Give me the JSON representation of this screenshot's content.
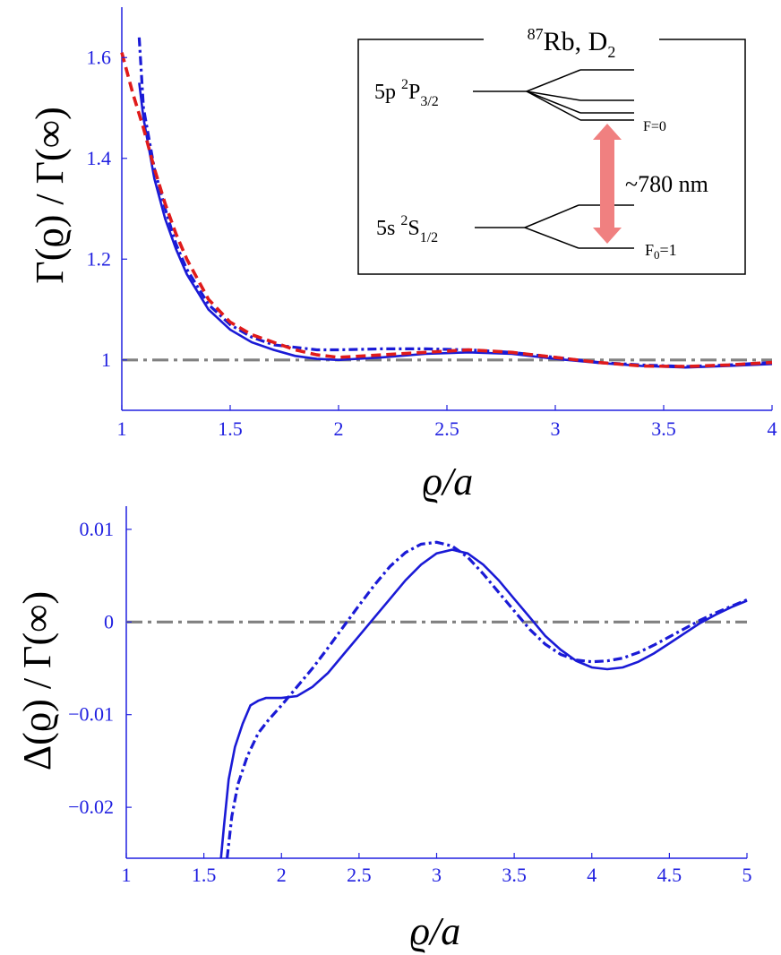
{
  "colors": {
    "axis": "#2020e0",
    "blue": "#1a1ad6",
    "red": "#e01b1b",
    "reference": "#808080",
    "arrow": "#f08080"
  },
  "chart_data": [
    {
      "type": "line",
      "name": "top-panel",
      "ylabel": "Γ(ϱ) / Γ(∞)",
      "xlabel": "ϱ/a",
      "xlim": [
        1,
        4
      ],
      "ylim": [
        0.9,
        1.7
      ],
      "xticks": [
        "1",
        "1.5",
        "2",
        "2.5",
        "3",
        "3.5",
        "4"
      ],
      "yticks": [
        "1",
        "1.2",
        "1.4",
        "1.6"
      ],
      "series": [
        {
          "name": "blue-solid",
          "style": "solid",
          "color": "blue",
          "x": [
            1.08,
            1.1,
            1.15,
            1.2,
            1.25,
            1.3,
            1.4,
            1.5,
            1.6,
            1.7,
            1.8,
            1.9,
            2.0,
            2.2,
            2.4,
            2.6,
            2.8,
            3.0,
            3.2,
            3.4,
            3.6,
            3.8,
            4.0
          ],
          "y": [
            1.55,
            1.48,
            1.36,
            1.28,
            1.22,
            1.17,
            1.1,
            1.06,
            1.035,
            1.02,
            1.008,
            1.002,
            1.0,
            1.005,
            1.012,
            1.015,
            1.012,
            1.002,
            0.994,
            0.988,
            0.985,
            0.988,
            0.992
          ]
        },
        {
          "name": "blue-dashdot",
          "style": "dashdot",
          "color": "blue",
          "x": [
            1.08,
            1.1,
            1.15,
            1.2,
            1.25,
            1.3,
            1.4,
            1.5,
            1.6,
            1.7,
            1.8,
            1.9,
            2.0,
            2.2,
            2.4,
            2.6,
            2.8,
            3.0,
            3.2,
            3.4,
            3.6,
            3.8,
            4.0
          ],
          "y": [
            1.64,
            1.5,
            1.38,
            1.3,
            1.23,
            1.18,
            1.11,
            1.07,
            1.045,
            1.03,
            1.025,
            1.02,
            1.02,
            1.022,
            1.022,
            1.02,
            1.015,
            1.005,
            0.995,
            0.99,
            0.987,
            0.99,
            0.995
          ]
        },
        {
          "name": "red-dashed",
          "style": "dashed",
          "color": "red",
          "x": [
            1.0,
            1.05,
            1.1,
            1.15,
            1.2,
            1.25,
            1.3,
            1.4,
            1.5,
            1.6,
            1.7,
            1.8,
            1.9,
            2.0,
            2.2,
            2.4,
            2.6,
            2.8,
            3.0,
            3.2,
            3.4,
            3.6,
            3.8,
            4.0
          ],
          "y": [
            1.61,
            1.53,
            1.46,
            1.38,
            1.31,
            1.25,
            1.2,
            1.12,
            1.075,
            1.05,
            1.035,
            1.02,
            1.01,
            1.005,
            1.01,
            1.015,
            1.02,
            1.015,
            1.005,
            0.995,
            0.988,
            0.987,
            0.99,
            0.995
          ]
        },
        {
          "name": "reference",
          "style": "reference",
          "color": "reference",
          "x": [
            1.0,
            4.0
          ],
          "y": [
            1.0,
            1.0
          ]
        }
      ]
    },
    {
      "type": "line",
      "name": "bottom-panel",
      "ylabel": "Δ(ϱ) / Γ(∞)",
      "xlabel": "ϱ/a",
      "xlim": [
        1,
        5
      ],
      "ylim": [
        -0.0255,
        0.0125
      ],
      "xticks": [
        "1",
        "1.5",
        "2",
        "2.5",
        "3",
        "3.5",
        "4",
        "4.5",
        "5"
      ],
      "yticks": [
        "-0.02",
        "-0.01",
        "0",
        "0.01"
      ],
      "series": [
        {
          "name": "blue-solid",
          "style": "solid",
          "color": "blue",
          "x": [
            1.61,
            1.63,
            1.66,
            1.7,
            1.75,
            1.8,
            1.85,
            1.9,
            2.0,
            2.1,
            2.2,
            2.3,
            2.4,
            2.5,
            2.6,
            2.7,
            2.8,
            2.9,
            3.0,
            3.1,
            3.2,
            3.3,
            3.4,
            3.5,
            3.6,
            3.7,
            3.8,
            3.9,
            4.0,
            4.1,
            4.2,
            4.3,
            4.4,
            4.5,
            4.6,
            4.7,
            4.8,
            4.9,
            5.0
          ],
          "y": [
            -0.0255,
            -0.022,
            -0.017,
            -0.0135,
            -0.011,
            -0.009,
            -0.0085,
            -0.0082,
            -0.0082,
            -0.008,
            -0.007,
            -0.0055,
            -0.0035,
            -0.0015,
            0.0005,
            0.0025,
            0.0045,
            0.0062,
            0.0074,
            0.0078,
            0.0074,
            0.0062,
            0.0045,
            0.0025,
            0.0005,
            -0.0015,
            -0.003,
            -0.0042,
            -0.0049,
            -0.0051,
            -0.0049,
            -0.0043,
            -0.0034,
            -0.0023,
            -0.0012,
            -0.0001,
            0.0008,
            0.0016,
            0.0023
          ]
        },
        {
          "name": "blue-dashdot",
          "style": "dashdot",
          "color": "blue",
          "x": [
            1.65,
            1.68,
            1.72,
            1.78,
            1.85,
            1.92,
            2.0,
            2.1,
            2.2,
            2.3,
            2.4,
            2.5,
            2.6,
            2.7,
            2.8,
            2.9,
            3.0,
            3.1,
            3.2,
            3.3,
            3.4,
            3.5,
            3.6,
            3.7,
            3.8,
            3.9,
            4.0,
            4.1,
            4.2,
            4.3,
            4.4,
            4.5,
            4.6,
            4.7,
            4.8,
            4.9,
            5.0
          ],
          "y": [
            -0.0255,
            -0.021,
            -0.0175,
            -0.0145,
            -0.012,
            -0.0105,
            -0.009,
            -0.007,
            -0.005,
            -0.0028,
            -0.0005,
            0.0018,
            0.004,
            0.006,
            0.0075,
            0.0084,
            0.0086,
            0.0082,
            0.007,
            0.0052,
            0.0032,
            0.0012,
            -0.0008,
            -0.0024,
            -0.0035,
            -0.0041,
            -0.0043,
            -0.0042,
            -0.0039,
            -0.0033,
            -0.0025,
            -0.0016,
            -0.0007,
            0.0002,
            0.001,
            0.0017,
            0.0024
          ]
        },
        {
          "name": "reference",
          "style": "reference",
          "color": "reference",
          "x": [
            1.0,
            5.0
          ],
          "y": [
            0.0,
            0.0
          ]
        }
      ]
    }
  ],
  "inset": {
    "title_sup": "87",
    "title_main": "Rb, D",
    "title_sub": "2",
    "upper_level_main": "5p ",
    "upper_level_sup": "2",
    "upper_level_P": "P",
    "upper_level_sub": "3/2",
    "lower_level_main": "5s ",
    "lower_level_sup": "2",
    "lower_level_S": "S",
    "lower_level_sub": "1/2",
    "upper_state_label": "F=0",
    "lower_state_main": "F",
    "lower_state_sub": "0",
    "lower_state_value": "=1",
    "wavelength": "~780 nm"
  }
}
